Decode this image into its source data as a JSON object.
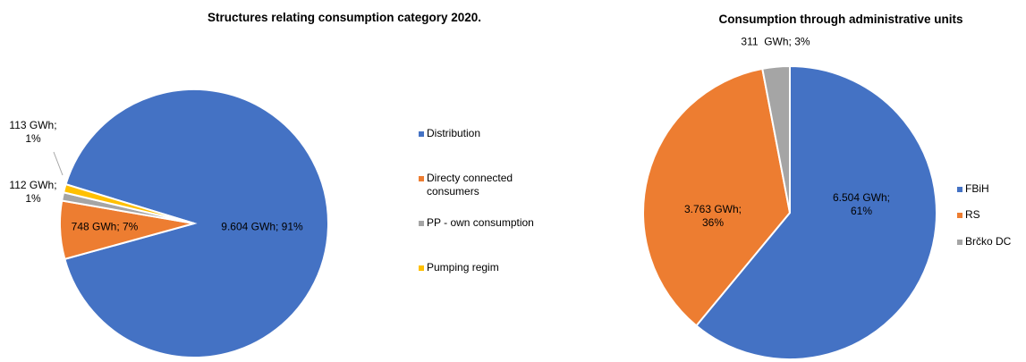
{
  "chart_data": [
    {
      "type": "pie",
      "title": "Structures relating consumption category 2020.",
      "categories": [
        "Distribution",
        "Directy connected consumers",
        "PP - own consumption",
        "Pumping regim"
      ],
      "values": [
        91,
        7,
        1,
        1
      ],
      "value_labels": [
        "9.604 GWh; 91%",
        "748 GWh; 7%",
        "112 GWh; 1%",
        "113 GWh; 1%"
      ],
      "colors": [
        "#4472c4",
        "#ed7d31",
        "#a5a5a5",
        "#ffc000"
      ],
      "legend": "right"
    },
    {
      "type": "pie",
      "title": "Consumption through administrative units",
      "categories": [
        "FBiH",
        "RS",
        "Brčko DC"
      ],
      "values": [
        61,
        36,
        3
      ],
      "value_labels": [
        "6.504 GWh; 61%",
        "3.763 GWh; 36%",
        "311  GWh; 3%"
      ],
      "colors": [
        "#4472c4",
        "#ed7d31",
        "#a5a5a5"
      ],
      "legend": "right"
    }
  ]
}
